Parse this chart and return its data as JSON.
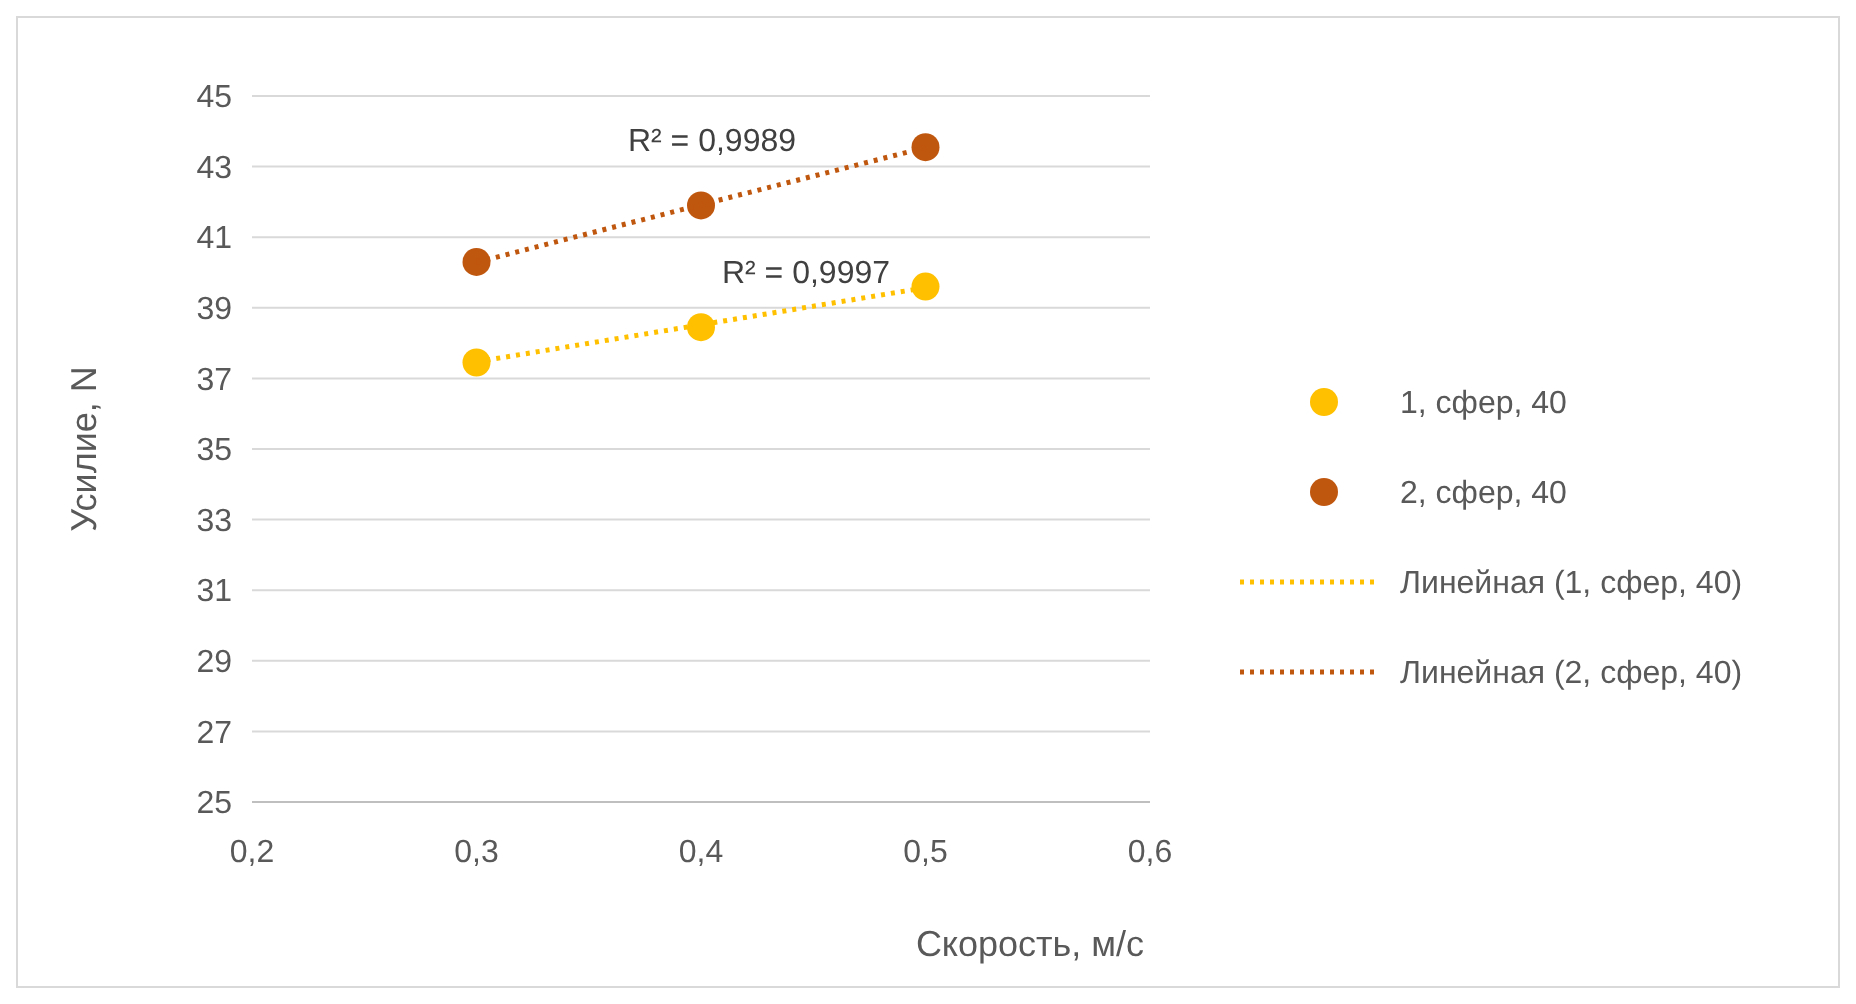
{
  "chart_data": {
    "type": "scatter",
    "xlabel": "Скорость, м/с",
    "ylabel": "Усилие, N",
    "xlim": [
      0.2,
      0.6
    ],
    "xticks": [
      {
        "value": 0.2,
        "label": "0,2"
      },
      {
        "value": 0.3,
        "label": "0,3"
      },
      {
        "value": 0.4,
        "label": "0,4"
      },
      {
        "value": 0.5,
        "label": "0,5"
      },
      {
        "value": 0.6,
        "label": "0,6"
      }
    ],
    "ylim": [
      25,
      45
    ],
    "yticks": [
      25,
      27,
      29,
      31,
      33,
      35,
      37,
      39,
      41,
      43,
      45
    ],
    "grid": "y",
    "legend": "right",
    "marker": "circle",
    "x": [
      0.3,
      0.4,
      0.5
    ],
    "series": [
      {
        "name": "1, сфер, 40",
        "color": "#ffc000",
        "values": [
          37.45,
          38.45,
          39.6
        ]
      },
      {
        "name": "2, сфер, 40",
        "color": "#c0570f",
        "values": [
          40.3,
          41.9,
          43.55
        ]
      },
      {
        "name": "Линейная (1, сфер, 40)",
        "type": "line",
        "line_style": "dotted",
        "marker": "none",
        "color": "#ffc000",
        "values": [
          37.47,
          38.52,
          39.57
        ]
      },
      {
        "name": "Линейная (2, сфер, 40)",
        "type": "line",
        "line_style": "dotted",
        "marker": "none",
        "color": "#c0570f",
        "values": [
          40.29,
          41.92,
          43.54
        ]
      }
    ],
    "annotations": [
      "R² = 0,9989",
      "R² = 0,9997"
    ]
  }
}
